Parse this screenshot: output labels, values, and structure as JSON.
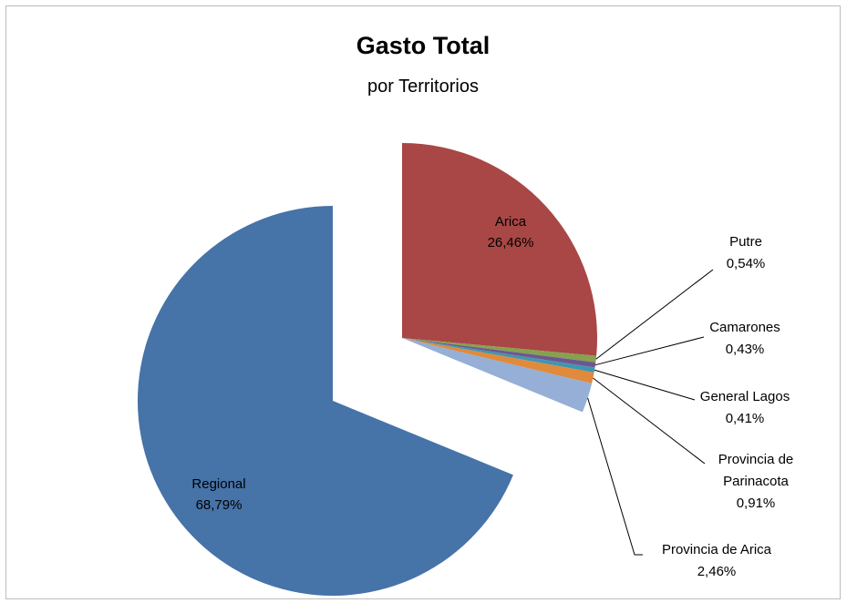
{
  "chart_data": {
    "type": "pie",
    "title": "Gasto Total",
    "subtitle": "por Territorios",
    "slices": [
      {
        "name": "Arica",
        "value": 26.46,
        "label": "26,46%",
        "color": "#A84745",
        "exploded": true
      },
      {
        "name": "Putre",
        "value": 0.54,
        "label": "0,54%",
        "color": "#86A24E",
        "exploded": true
      },
      {
        "name": "Camarones",
        "value": 0.43,
        "label": "0,43%",
        "color": "#6E5693",
        "exploded": true
      },
      {
        "name": "General Lagos",
        "value": 0.41,
        "label": "0,41%",
        "color": "#3F97AE",
        "exploded": true
      },
      {
        "name": "Provincia de Parinacota",
        "value": 0.91,
        "label": "0,91%",
        "color": "#E08A3C",
        "exploded": true
      },
      {
        "name": "Provincia de Arica",
        "value": 2.46,
        "label": "2,46%",
        "color": "#95AFD6",
        "exploded": true
      },
      {
        "name": "Regional",
        "value": 68.79,
        "label": "68,79%",
        "color": "#4673A8",
        "exploded": false
      }
    ],
    "label_lines": {
      "Putre": [
        "Putre",
        "0,54%"
      ],
      "Camarones": [
        "Camarones",
        "0,43%"
      ],
      "General Lagos": [
        "General Lagos",
        "0,41%"
      ],
      "Provincia de Parinacota": [
        "Provincia de",
        "Parinacota",
        "0,91%"
      ],
      "Provincia de Arica": [
        "Provincia de Arica",
        "2,46%"
      ],
      "Arica": [
        "Arica",
        "26,46%"
      ],
      "Regional": [
        "Regional",
        "68,79%"
      ]
    }
  }
}
